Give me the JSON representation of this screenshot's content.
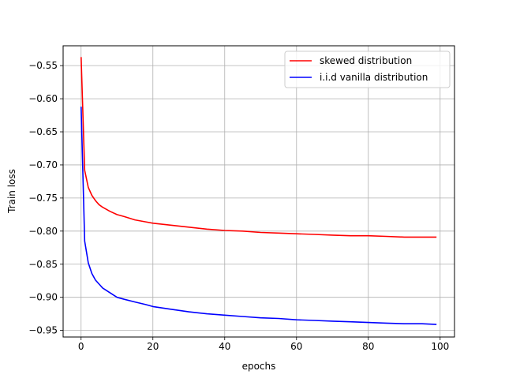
{
  "chart_data": {
    "type": "line",
    "xlabel": "epochs",
    "ylabel": "Train loss",
    "xlim": [
      -5,
      104
    ],
    "ylim": [
      -0.96,
      -0.52
    ],
    "x_ticks": [
      0,
      20,
      40,
      60,
      80,
      100
    ],
    "x_tick_labels": [
      "0",
      "20",
      "40",
      "60",
      "80",
      "100"
    ],
    "y_ticks": [
      -0.55,
      -0.6,
      -0.65,
      -0.7,
      -0.75,
      -0.8,
      -0.85,
      -0.9,
      -0.95
    ],
    "y_tick_labels": [
      "−0.55",
      "−0.60",
      "−0.65",
      "−0.70",
      "−0.75",
      "−0.80",
      "−0.85",
      "−0.90",
      "−0.95"
    ],
    "grid": true,
    "legend_position": "upper right",
    "series": [
      {
        "name": "skewed distribution",
        "color": "#ff0000",
        "x": [
          0,
          1,
          2,
          3,
          4,
          5,
          6,
          8,
          10,
          12,
          15,
          18,
          20,
          25,
          30,
          35,
          40,
          45,
          50,
          55,
          60,
          65,
          70,
          75,
          80,
          85,
          90,
          95,
          99
        ],
        "y": [
          -0.537,
          -0.708,
          -0.734,
          -0.746,
          -0.754,
          -0.76,
          -0.764,
          -0.77,
          -0.775,
          -0.778,
          -0.783,
          -0.786,
          -0.788,
          -0.791,
          -0.794,
          -0.797,
          -0.799,
          -0.8,
          -0.802,
          -0.803,
          -0.804,
          -0.805,
          -0.806,
          -0.807,
          -0.807,
          -0.808,
          -0.809,
          -0.809,
          -0.809
        ]
      },
      {
        "name": "i.i.d vanilla distribution",
        "color": "#0000ff",
        "x": [
          0,
          1,
          2,
          3,
          4,
          5,
          6,
          8,
          10,
          12,
          15,
          18,
          20,
          25,
          30,
          35,
          40,
          45,
          50,
          55,
          60,
          65,
          70,
          75,
          80,
          85,
          90,
          95,
          99
        ],
        "y": [
          -0.612,
          -0.815,
          -0.848,
          -0.864,
          -0.874,
          -0.88,
          -0.886,
          -0.893,
          -0.9,
          -0.903,
          -0.907,
          -0.911,
          -0.914,
          -0.918,
          -0.922,
          -0.925,
          -0.927,
          -0.929,
          -0.931,
          -0.932,
          -0.934,
          -0.935,
          -0.936,
          -0.937,
          -0.938,
          -0.939,
          -0.94,
          -0.94,
          -0.941
        ]
      }
    ]
  }
}
